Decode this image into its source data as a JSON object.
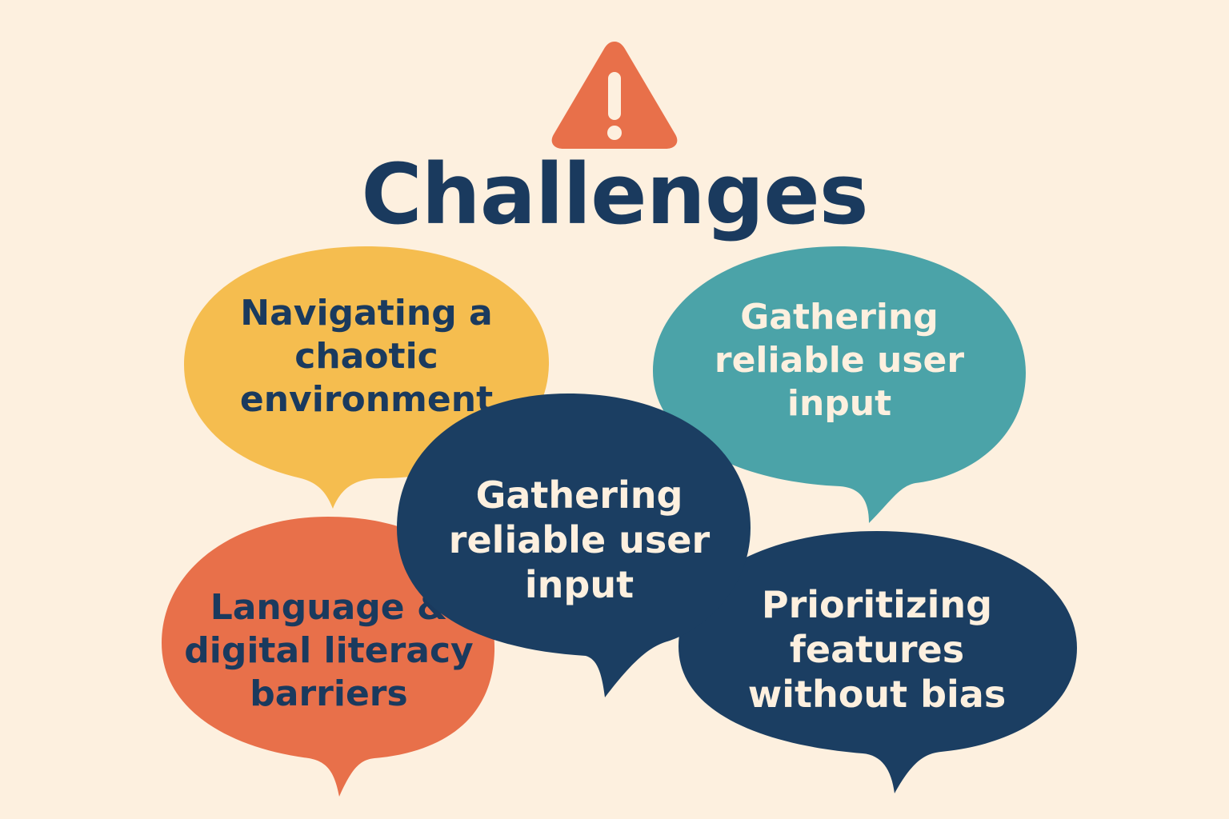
{
  "title": "Challenges",
  "icon": "warning-icon",
  "colors": {
    "background": "#fdf0df",
    "title": "#1a3a5e",
    "warning": "#e8704a"
  },
  "bubbles": [
    {
      "id": "navigating",
      "text": "Navigating a chaotic environment",
      "fill": "#f5bd4f",
      "text_color": "#1a3a5e"
    },
    {
      "id": "gathering-teal",
      "text": "Gathering reliable user input",
      "fill": "#4ba3a8",
      "text_color": "#fdf0df"
    },
    {
      "id": "gathering-navy",
      "text": "Gathering reliable user input",
      "fill": "#1b3e62",
      "text_color": "#fdf0df"
    },
    {
      "id": "language",
      "text": "Language & digital literacy barriers",
      "fill": "#e8704a",
      "text_color": "#1a3a5e"
    },
    {
      "id": "prioritizing",
      "text": "Prioritizing features without bias",
      "fill": "#1b3e62",
      "text_color": "#fdf0df"
    }
  ]
}
